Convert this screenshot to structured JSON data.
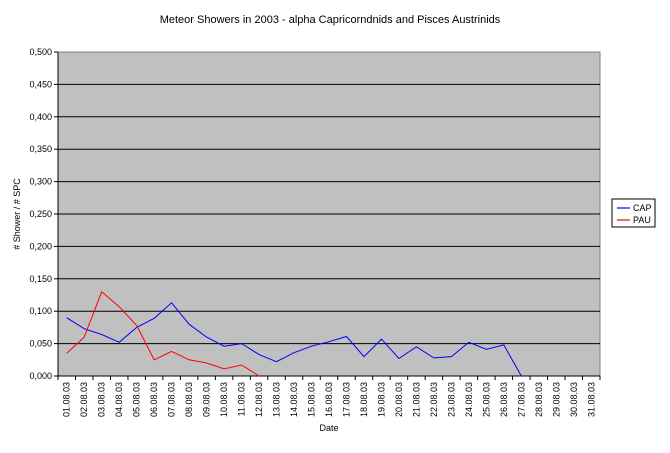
{
  "chart_data": {
    "type": "line",
    "title": "Meteor Showers in 2003 - alpha Capricorndnids and Pisces Austrinids",
    "xlabel": "Date",
    "ylabel": "# Shower / # SPC",
    "ylim": [
      0,
      0.5
    ],
    "y_ticks": [
      "0,000",
      "0,050",
      "0,100",
      "0,150",
      "0,200",
      "0,250",
      "0,300",
      "0,350",
      "0,400",
      "0,450",
      "0,500"
    ],
    "grid": true,
    "plot_background": "#c0c0c0",
    "legend_position": "right",
    "categories": [
      "01.08.03",
      "02.08.03",
      "03.08.03",
      "04.08.03",
      "05.08.03",
      "06.08.03",
      "07.08.03",
      "08.08.03",
      "09.08.03",
      "10.08.03",
      "11.08.03",
      "12.08.03",
      "13.08.03",
      "14.08.03",
      "15.08.03",
      "16.08.03",
      "17.08.03",
      "18.08.03",
      "19.08.03",
      "20.08.03",
      "21.08.03",
      "22.08.03",
      "23.08.03",
      "24.08.03",
      "25.08.03",
      "26.08.03",
      "27.08.03",
      "28.08.03",
      "29.08.03",
      "30.08.03",
      "31.08.03"
    ],
    "series": [
      {
        "name": "CAP",
        "color": "#0000ff",
        "values": [
          0.09,
          0.073,
          0.064,
          0.052,
          0.075,
          0.089,
          0.113,
          0.08,
          0.06,
          0.046,
          0.05,
          0.033,
          0.022,
          0.036,
          0.046,
          0.053,
          0.061,
          0.03,
          0.057,
          0.027,
          0.045,
          0.028,
          0.03,
          0.052,
          0.041,
          0.048,
          0.0,
          null,
          null,
          null,
          null
        ]
      },
      {
        "name": "PAU",
        "color": "#ff0000",
        "values": [
          0.035,
          0.06,
          0.13,
          0.107,
          0.078,
          0.025,
          0.038,
          0.025,
          0.02,
          0.011,
          0.017,
          0.0,
          null,
          null,
          null,
          null,
          null,
          null,
          null,
          null,
          null,
          null,
          null,
          null,
          null,
          null,
          null,
          null,
          null,
          null,
          null
        ]
      }
    ]
  }
}
